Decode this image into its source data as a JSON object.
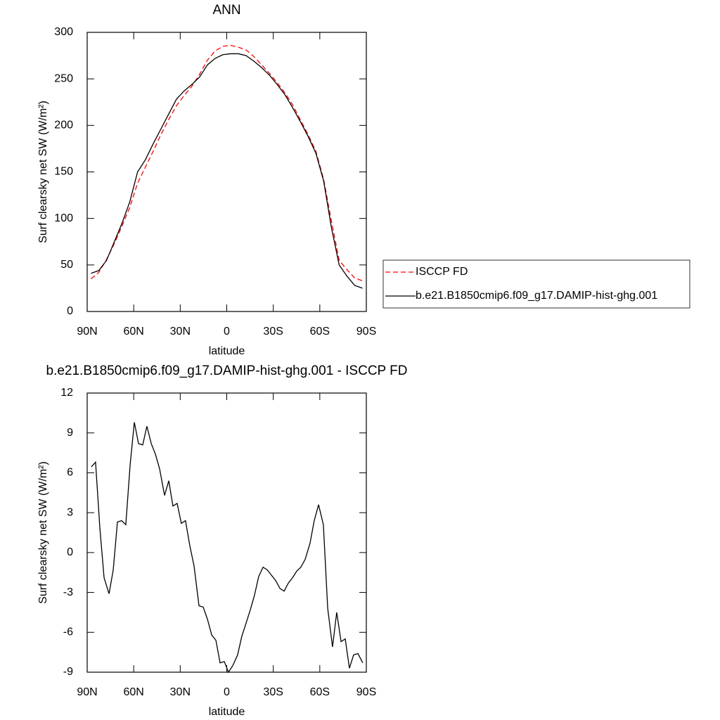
{
  "chart_data": [
    {
      "type": "line",
      "title": "ANN",
      "xlabel": "latitude",
      "ylabel": "Surf clearsky net SW (W/m²)",
      "x": [
        87.5,
        82.5,
        77.5,
        72.5,
        67.5,
        62.5,
        57.5,
        52.5,
        47.5,
        42.5,
        37.5,
        32.5,
        27.5,
        22.5,
        17.5,
        12.5,
        7.5,
        2.5,
        -2.5,
        -7.5,
        -12.5,
        -17.5,
        -22.5,
        -27.5,
        -32.5,
        -37.5,
        -42.5,
        -47.5,
        -52.5,
        -57.5,
        -62.5,
        -67.5,
        -72.5,
        -77.5,
        -82.5,
        -87.5
      ],
      "series": [
        {
          "name": "ISCCP FD",
          "color": "#ff0000",
          "dash": true,
          "values": [
            35,
            42,
            56,
            73,
            92,
            112,
            138,
            155,
            172,
            190,
            206,
            221,
            232,
            242,
            255,
            270,
            280,
            285,
            286,
            284,
            281,
            274,
            265,
            256,
            246,
            235,
            222,
            206,
            190,
            172,
            142,
            97,
            55,
            45,
            36,
            33
          ]
        },
        {
          "name": "b.e21.B1850cmip6.f09_g17.DAMIP-hist-ghg.001",
          "color": "#000000",
          "dash": false,
          "values": [
            41,
            44,
            55,
            75,
            95,
            118,
            150,
            163,
            180,
            196,
            212,
            228,
            237,
            244,
            252,
            265,
            272,
            276,
            277,
            277,
            275,
            269,
            262,
            254,
            244,
            233,
            219,
            204,
            188,
            170,
            140,
            90,
            50,
            38,
            28,
            25
          ]
        }
      ],
      "xlim": [
        90,
        -90
      ],
      "xticks": [
        {
          "value": 90,
          "label": "90N"
        },
        {
          "value": 60,
          "label": "60N"
        },
        {
          "value": 30,
          "label": "30N"
        },
        0,
        {
          "value": -30,
          "label": "30S"
        },
        {
          "value": -60,
          "label": "60S"
        },
        {
          "value": -90,
          "label": "90S"
        }
      ],
      "ylim": [
        0,
        300
      ],
      "yticks": [
        0,
        50,
        100,
        150,
        200,
        250,
        300
      ],
      "legend": "right"
    },
    {
      "type": "line",
      "title": "b.e21.B1850cmip6.f09_g17.DAMIP-hist-ghg.001 - ISCCP FD",
      "xlabel": "latitude",
      "ylabel": "Surf clearsky net SW (W/m²)",
      "x": [
        87.3,
        84.6,
        81.8,
        79.1,
        75.9,
        73.2,
        70.5,
        67.8,
        65.1,
        62.3,
        59.6,
        56.9,
        54.2,
        51.5,
        48.7,
        46.0,
        43.3,
        40.1,
        37.4,
        34.7,
        32.0,
        29.3,
        26.6,
        23.8,
        21.1,
        17.9,
        15.2,
        12.5,
        9.7,
        7.0,
        4.3,
        1.6,
        -1.1,
        -3.9,
        -7.0,
        -9.7,
        -12.5,
        -15.2,
        -17.9,
        -20.6,
        -23.4,
        -26.1,
        -28.8,
        -31.5,
        -34.3,
        -37.0,
        -39.7,
        -42.4,
        -45.1,
        -47.8,
        -50.6,
        -53.7,
        -56.4,
        -59.2,
        -62.3,
        -65.1,
        -68.2,
        -70.9,
        -73.7,
        -76.4,
        -79.1,
        -81.8,
        -84.6,
        -87.7
      ],
      "series": [
        {
          "name": "b.e21.B1850cmip6.f09_g17.DAMIP-hist-ghg.001 - ISCCP FD",
          "color": "#000000",
          "dash": false,
          "values": [
            6.45,
            6.8,
            1.8,
            -1.9,
            -3.1,
            -1.3,
            2.3,
            2.4,
            2.1,
            6.6,
            9.8,
            8.2,
            8.1,
            9.5,
            8.2,
            7.4,
            6.3,
            4.3,
            5.4,
            3.5,
            3.7,
            2.2,
            2.4,
            0.5,
            -1.0,
            -4.0,
            -4.1,
            -5.0,
            -6.2,
            -6.6,
            -8.3,
            -8.2,
            -9.0,
            -8.5,
            -7.7,
            -6.3,
            -5.3,
            -4.3,
            -3.2,
            -1.8,
            -1.1,
            -1.3,
            -1.7,
            -2.1,
            -2.7,
            -2.9,
            -2.3,
            -1.9,
            -1.4,
            -1.1,
            -0.5,
            0.7,
            2.4,
            3.6,
            2.1,
            -4.2,
            -7.1,
            -4.5,
            -6.7,
            -6.5,
            -8.7,
            -7.7,
            -7.6,
            -8.3
          ]
        }
      ],
      "xlim": [
        90,
        -90
      ],
      "xticks": [
        {
          "value": 90,
          "label": "90N"
        },
        {
          "value": 60,
          "label": "60N"
        },
        {
          "value": 30,
          "label": "30N"
        },
        0,
        {
          "value": -30,
          "label": "30S"
        },
        {
          "value": -60,
          "label": "60S"
        },
        {
          "value": -90,
          "label": "90S"
        }
      ],
      "ylim": [
        -9,
        12
      ],
      "yticks": [
        -9,
        -6,
        -3,
        0,
        3,
        6,
        9,
        12
      ]
    }
  ]
}
